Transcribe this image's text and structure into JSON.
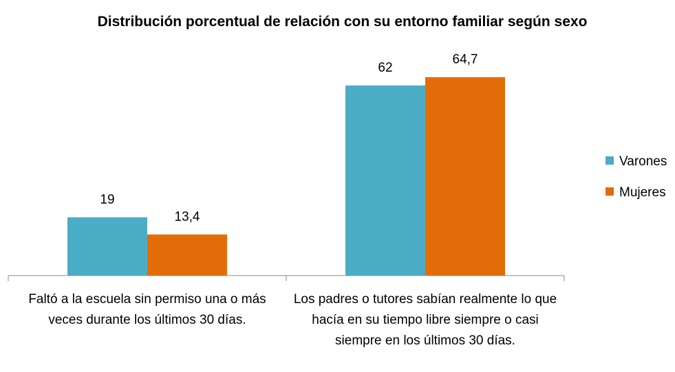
{
  "chart_data": {
    "type": "bar",
    "title": "Distribución porcentual de relación con su entorno familiar según sexo",
    "categories": [
      "Faltó a la escuela sin permiso una o más veces durante los últimos 30 días.",
      "Los padres o tutores sabían realmente lo que hacía en su tiempo libre siempre o casi siempre en los últimos 30 días."
    ],
    "series": [
      {
        "name": "Varones",
        "color": "#4bacc6",
        "values": [
          19,
          62
        ],
        "value_labels": [
          "19",
          "62"
        ]
      },
      {
        "name": "Mujeres",
        "color": "#e36c09",
        "values": [
          13.4,
          64.7
        ],
        "value_labels": [
          "13,4",
          "64,7"
        ]
      }
    ],
    "legend": "right"
  }
}
